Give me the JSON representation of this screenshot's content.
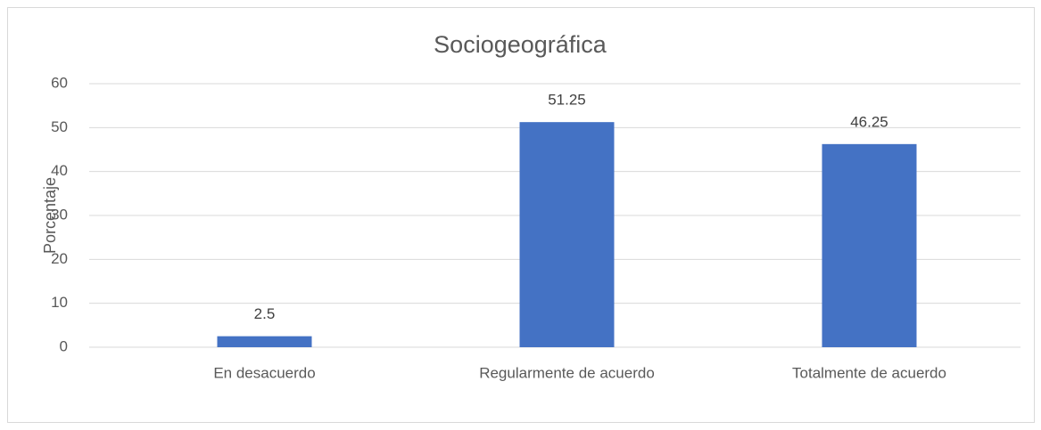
{
  "chart_data": {
    "type": "bar",
    "title": "Sociogeográfica",
    "y_label": "Porcentaje",
    "categories": [
      "En desacuerdo",
      "Regularmente de acuerdo",
      "Totalmente de acuerdo"
    ],
    "values": [
      2.5,
      51.25,
      46.25
    ],
    "color": "#4472c4",
    "ylim": [
      0,
      60
    ],
    "yticks": [
      0,
      10,
      20,
      30,
      40,
      50,
      60
    ],
    "grid": true
  }
}
